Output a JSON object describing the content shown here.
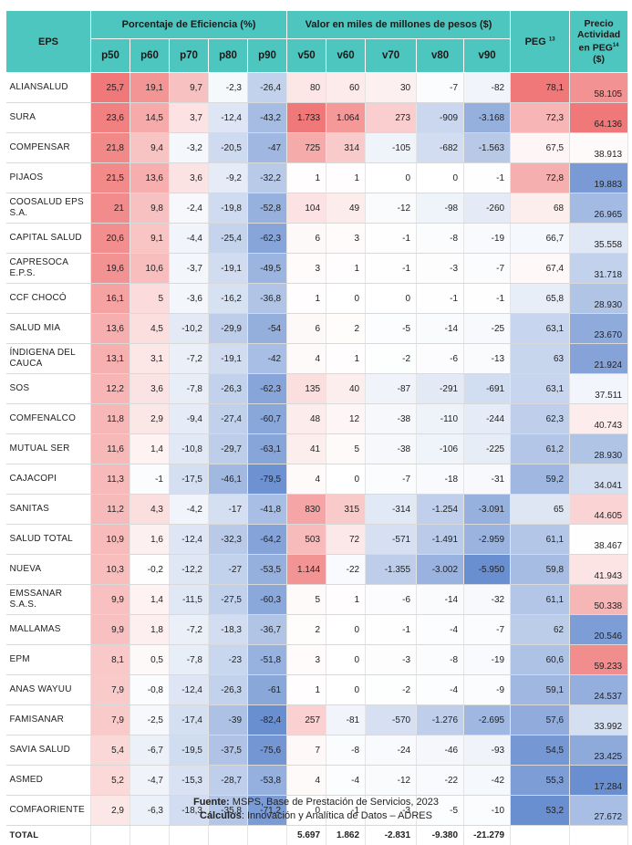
{
  "header": {
    "eps": "EPS",
    "group_efficiency": "Porcentaje de Eficiencia (%)",
    "group_value": "Valor en miles de millones de pesos ($)",
    "peg": "PEG",
    "peg_sup": "13",
    "price_line1": "Precio",
    "price_line2": "Actividad",
    "price_line3": "en PEG",
    "price_sup": "14",
    "price_line4": "($)",
    "pcols": [
      "p50",
      "p60",
      "p70",
      "p80",
      "p90"
    ],
    "vcols": [
      "v50",
      "v60",
      "v70",
      "v80",
      "v90"
    ]
  },
  "rows": [
    {
      "eps": "ALIANSALUD",
      "p": [
        "25,7",
        "19,1",
        "9,7",
        "-2,3",
        "-26,4"
      ],
      "v": [
        "80",
        "60",
        "30",
        "-7",
        "-82"
      ],
      "peg": "78,1",
      "price": "58.105"
    },
    {
      "eps": "SURA",
      "p": [
        "23,6",
        "14,5",
        "3,7",
        "-12,4",
        "-43,2"
      ],
      "v": [
        "1.733",
        "1.064",
        "273",
        "-909",
        "-3.168"
      ],
      "peg": "72,3",
      "price": "64.136"
    },
    {
      "eps": "COMPENSAR",
      "p": [
        "21,8",
        "9,4",
        "-3,2",
        "-20,5",
        "-47"
      ],
      "v": [
        "725",
        "314",
        "-105",
        "-682",
        "-1.563"
      ],
      "peg": "67,5",
      "price": "38.913"
    },
    {
      "eps": "PIJAOS",
      "p": [
        "21,5",
        "13,6",
        "3,6",
        "-9,2",
        "-32,2"
      ],
      "v": [
        "1",
        "1",
        "0",
        "0",
        "-1"
      ],
      "peg": "72,8",
      "price": "19.883"
    },
    {
      "eps": "COOSALUD EPS S.A.",
      "p": [
        "21",
        "9,8",
        "-2,4",
        "-19,8",
        "-52,8"
      ],
      "v": [
        "104",
        "49",
        "-12",
        "-98",
        "-260"
      ],
      "peg": "68",
      "price": "26.965"
    },
    {
      "eps": "CAPITAL SALUD",
      "p": [
        "20,6",
        "9,1",
        "-4,4",
        "-25,4",
        "-62,3"
      ],
      "v": [
        "6",
        "3",
        "-1",
        "-8",
        "-19"
      ],
      "peg": "66,7",
      "price": "35.558"
    },
    {
      "eps": "CAPRESOCA E.P.S.",
      "p": [
        "19,6",
        "10,6",
        "-3,7",
        "-19,1",
        "-49,5"
      ],
      "v": [
        "3",
        "1",
        "-1",
        "-3",
        "-7"
      ],
      "peg": "67,4",
      "price": "31.718"
    },
    {
      "eps": "CCF CHOCÓ",
      "p": [
        "16,1",
        "5",
        "-3,6",
        "-16,2",
        "-36,8"
      ],
      "v": [
        "1",
        "0",
        "0",
        "-1",
        "-1"
      ],
      "peg": "65,8",
      "price": "28.930"
    },
    {
      "eps": "SALUD MIA",
      "p": [
        "13,6",
        "4,5",
        "-10,2",
        "-29,9",
        "-54"
      ],
      "v": [
        "6",
        "2",
        "-5",
        "-14",
        "-25"
      ],
      "peg": "63,1",
      "price": "23.670"
    },
    {
      "eps": "ÍNDIGENA DEL CAUCA",
      "p": [
        "13,1",
        "3,1",
        "-7,2",
        "-19,1",
        "-42"
      ],
      "v": [
        "4",
        "1",
        "-2",
        "-6",
        "-13"
      ],
      "peg": "63",
      "price": "21.924"
    },
    {
      "eps": "SOS",
      "p": [
        "12,2",
        "3,6",
        "-7,8",
        "-26,3",
        "-62,3"
      ],
      "v": [
        "135",
        "40",
        "-87",
        "-291",
        "-691"
      ],
      "peg": "63,1",
      "price": "37.511"
    },
    {
      "eps": "COMFENALCO",
      "p": [
        "11,8",
        "2,9",
        "-9,4",
        "-27,4",
        "-60,7"
      ],
      "v": [
        "48",
        "12",
        "-38",
        "-110",
        "-244"
      ],
      "peg": "62,3",
      "price": "40.743"
    },
    {
      "eps": "MUTUAL SER",
      "p": [
        "11,6",
        "1,4",
        "-10,8",
        "-29,7",
        "-63,1"
      ],
      "v": [
        "41",
        "5",
        "-38",
        "-106",
        "-225"
      ],
      "peg": "61,2",
      "price": "28.930"
    },
    {
      "eps": "CAJACOPI",
      "p": [
        "11,3",
        "-1",
        "-17,5",
        "-46,1",
        "-79,5"
      ],
      "v": [
        "4",
        "0",
        "-7",
        "-18",
        "-31"
      ],
      "peg": "59,2",
      "price": "34.041"
    },
    {
      "eps": "SANITAS",
      "p": [
        "11,2",
        "4,3",
        "-4,2",
        "-17",
        "-41,8"
      ],
      "v": [
        "830",
        "315",
        "-314",
        "-1.254",
        "-3.091"
      ],
      "peg": "65",
      "price": "44.605"
    },
    {
      "eps": "SALUD TOTAL",
      "p": [
        "10,9",
        "1,6",
        "-12,4",
        "-32,3",
        "-64,2"
      ],
      "v": [
        "503",
        "72",
        "-571",
        "-1.491",
        "-2.959"
      ],
      "peg": "61,1",
      "price": "38.467"
    },
    {
      "eps": "NUEVA",
      "p": [
        "10,3",
        "-0,2",
        "-12,2",
        "-27",
        "-53,5"
      ],
      "v": [
        "1.144",
        "-22",
        "-1.355",
        "-3.002",
        "-5.950"
      ],
      "peg": "59,8",
      "price": "41.943"
    },
    {
      "eps": "EMSSANAR S.A.S.",
      "p": [
        "9,9",
        "1,4",
        "-11,5",
        "-27,5",
        "-60,3"
      ],
      "v": [
        "5",
        "1",
        "-6",
        "-14",
        "-32"
      ],
      "peg": "61,1",
      "price": "50.338"
    },
    {
      "eps": "MALLAMAS",
      "p": [
        "9,9",
        "1,8",
        "-7,2",
        "-18,3",
        "-36,7"
      ],
      "v": [
        "2",
        "0",
        "-1",
        "-4",
        "-7"
      ],
      "peg": "62",
      "price": "20.546"
    },
    {
      "eps": "EPM",
      "p": [
        "8,1",
        "0,5",
        "-7,8",
        "-23",
        "-51,8"
      ],
      "v": [
        "3",
        "0",
        "-3",
        "-8",
        "-19"
      ],
      "peg": "60,6",
      "price": "59.233"
    },
    {
      "eps": "ANAS WAYUU",
      "p": [
        "7,9",
        "-0,8",
        "-12,4",
        "-26,3",
        "-61"
      ],
      "v": [
        "1",
        "0",
        "-2",
        "-4",
        "-9"
      ],
      "peg": "59,1",
      "price": "24.537"
    },
    {
      "eps": "FAMISANAR",
      "p": [
        "7,9",
        "-2,5",
        "-17,4",
        "-39",
        "-82,4"
      ],
      "v": [
        "257",
        "-81",
        "-570",
        "-1.276",
        "-2.695"
      ],
      "peg": "57,6",
      "price": "33.992"
    },
    {
      "eps": "SAVIA SALUD",
      "p": [
        "5,4",
        "-6,7",
        "-19,5",
        "-37,5",
        "-75,6"
      ],
      "v": [
        "7",
        "-8",
        "-24",
        "-46",
        "-93"
      ],
      "peg": "54,5",
      "price": "23.425"
    },
    {
      "eps": "ASMED",
      "p": [
        "5,2",
        "-4,7",
        "-15,3",
        "-28,7",
        "-53,8"
      ],
      "v": [
        "4",
        "-4",
        "-12",
        "-22",
        "-42"
      ],
      "peg": "55,3",
      "price": "17.284"
    },
    {
      "eps": "COMFAORIENTE",
      "p": [
        "2,9",
        "-6,3",
        "-18,3",
        "-35,8",
        "-71,2"
      ],
      "v": [
        "0",
        "-1",
        "-3",
        "-5",
        "-10"
      ],
      "peg": "53,2",
      "price": "27.672"
    }
  ],
  "total": {
    "label": "TOTAL",
    "v": [
      "5.697",
      "1.862",
      "-2.831",
      "-9.380",
      "-21.279"
    ]
  },
  "footer": {
    "source_label": "Fuente:",
    "source_text": " MSPS, Base de Prestación de Servicios, 2023",
    "calc_label": "Cálculos",
    "calc_text": ": Innovación y Analítica de Datos – ADRES"
  },
  "colors": {
    "header_bg": "#4dc6bf",
    "pos_max": "#f07878",
    "neg_max": "#6a8fd0"
  }
}
